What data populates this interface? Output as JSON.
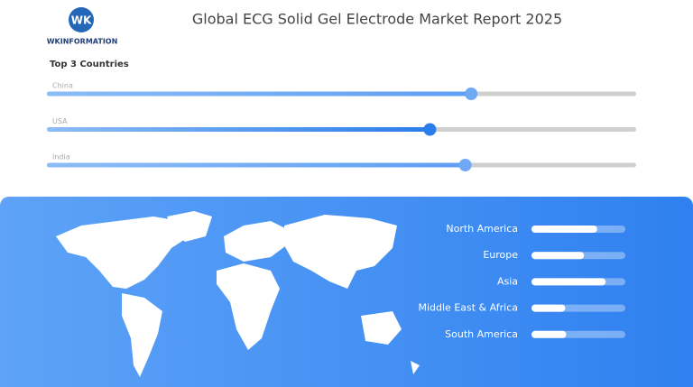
{
  "header": {
    "title": "Global ECG Solid Gel Electrode Market Report 2025",
    "logo_text": "WKINFORMATION"
  },
  "countries": {
    "title": "Top 3 Countries",
    "items": [
      {
        "label": "China",
        "value": 72
      },
      {
        "label": "USA",
        "value": 65
      },
      {
        "label": "India",
        "value": 71
      }
    ]
  },
  "regions": {
    "items": [
      {
        "label": "North America",
        "value": 70
      },
      {
        "label": "Europe",
        "value": 56
      },
      {
        "label": "Asia",
        "value": 79
      },
      {
        "label": "Middle East & Africa",
        "value": 36
      },
      {
        "label": "South America",
        "value": 37
      }
    ]
  }
}
